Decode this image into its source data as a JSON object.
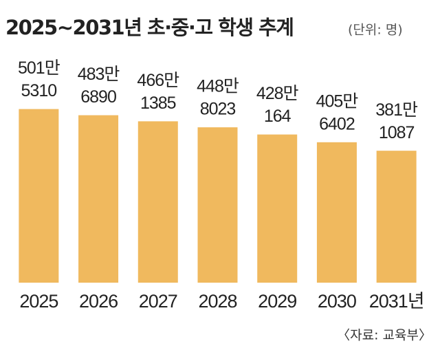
{
  "chart_data": {
    "type": "bar",
    "title": "2025~2031년 초·중·고 학생 추계",
    "subtitle": "(단위: 명)",
    "source": "〈자료: 교육부〉",
    "categories": [
      "2025",
      "2026",
      "2027",
      "2028",
      "2029",
      "2030",
      "2031년"
    ],
    "values": [
      5015310,
      4836890,
      4661385,
      4488023,
      4280164,
      4056402,
      3811087
    ],
    "value_labels": [
      [
        "501만",
        "5310"
      ],
      [
        "483만",
        "6890"
      ],
      [
        "466만",
        "1385"
      ],
      [
        "448만",
        "8023"
      ],
      [
        "428만",
        "164"
      ],
      [
        "405만",
        "6402"
      ],
      [
        "381만",
        "1087"
      ]
    ],
    "color": "#f0b95e",
    "ylim": [
      0,
      6000000
    ]
  }
}
